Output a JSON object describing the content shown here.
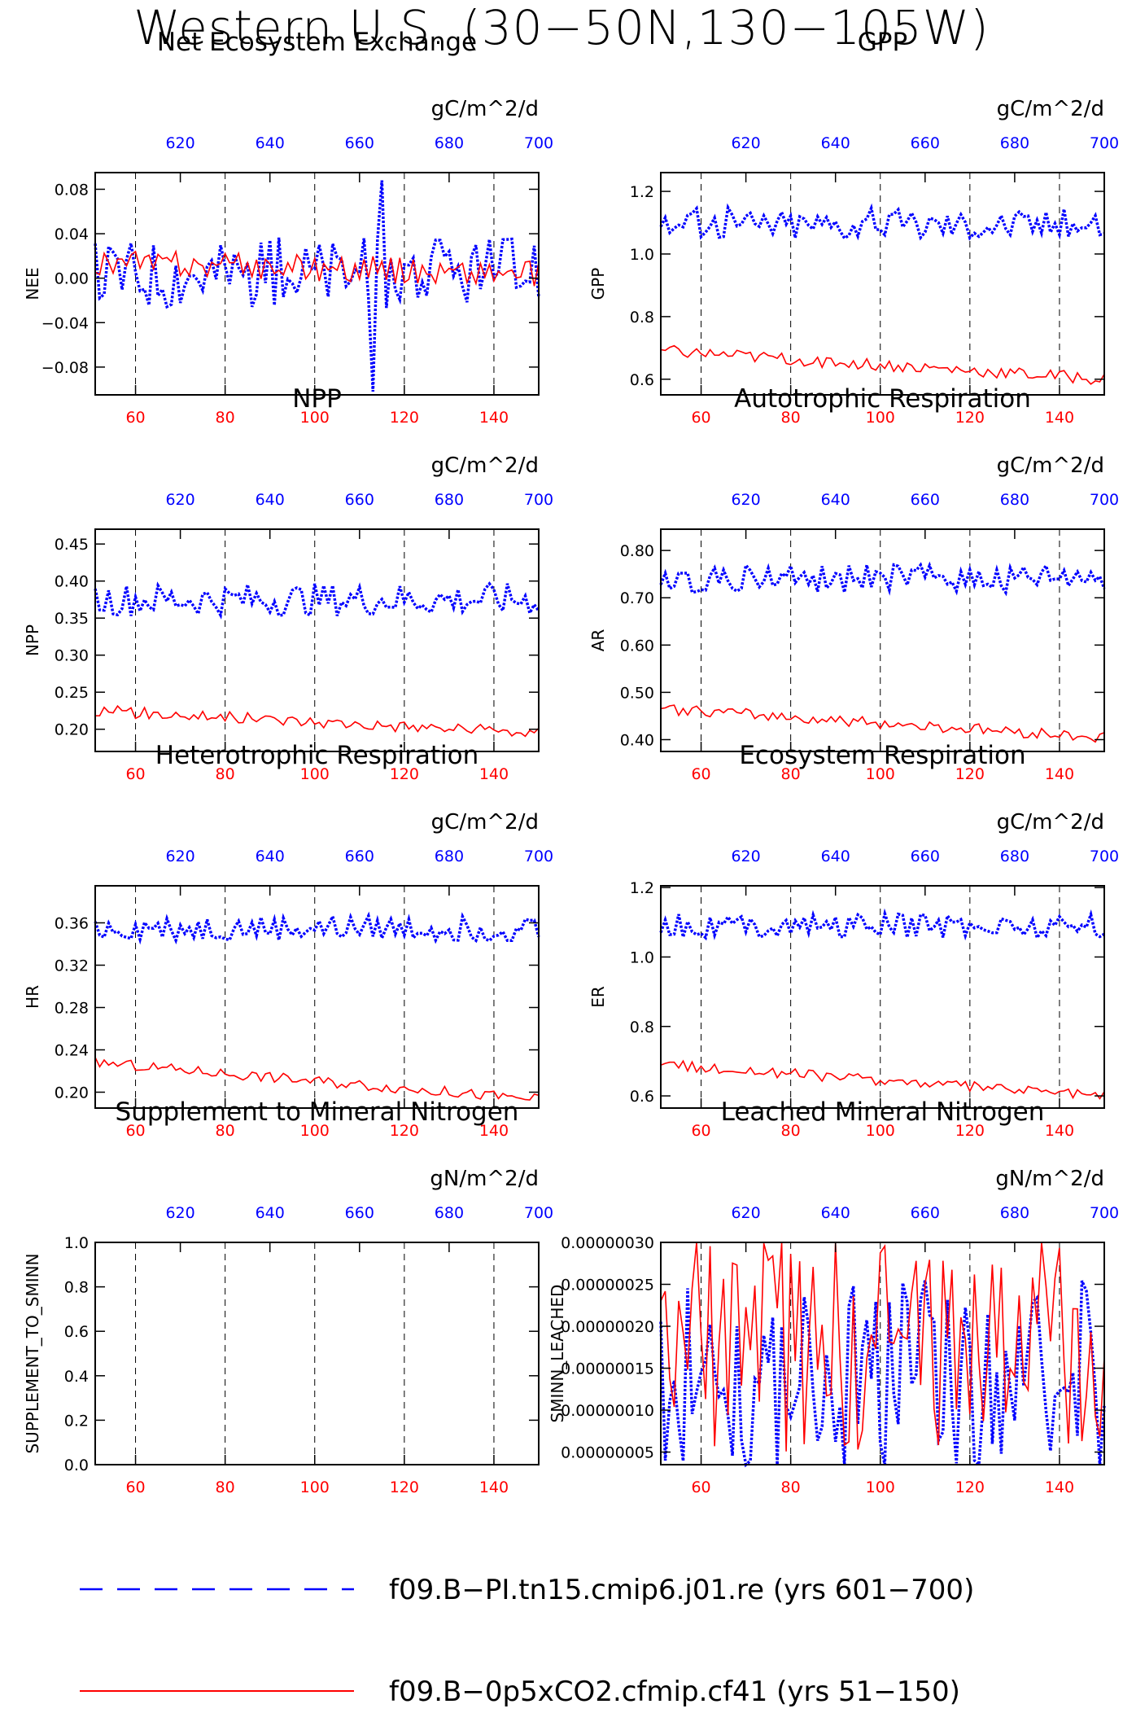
{
  "page_title": "Western U.S. (30−50N,130−105W)",
  "colors": {
    "series_blue": "#0000ff",
    "series_red": "#ff0000",
    "grid": "#000000"
  },
  "legend": [
    {
      "label": "f09.B−PI.tn15.cmip6.j01.re (yrs 601−700)",
      "color": "#0000ff",
      "style": "dashed"
    },
    {
      "label": "f09.B−0p5xCO2.cfmip.cf41 (yrs 51−150)",
      "color": "#ff0000",
      "style": "solid"
    }
  ],
  "chart_data": [
    {
      "type": "line",
      "title": "Net Ecosystem Exchange",
      "ylabel": "NEE",
      "units": "gC/m^2/d",
      "ylim": [
        -0.105,
        0.095
      ],
      "yticks": [
        -0.08,
        -0.04,
        0.0,
        0.04,
        0.08
      ],
      "ytick_labels": [
        "−0.08",
        "−0.04",
        "0.00",
        "0.04",
        "0.08"
      ],
      "x_bottom": {
        "ticks": [
          60,
          80,
          100,
          120,
          140
        ],
        "lim": [
          51,
          150
        ]
      },
      "x_top": {
        "ticks": [
          620,
          640,
          660,
          680,
          700
        ],
        "lim": [
          601,
          700
        ]
      },
      "grid": "vertical-dashed",
      "series": [
        {
          "color": "#0000ff",
          "style": "dotted",
          "base": 0.005,
          "amp": 0.032,
          "peak": [
            0.088,
            -0.102
          ]
        },
        {
          "color": "#ff0000",
          "style": "solid",
          "base": 0.014,
          "amp": 0.012,
          "trend": -0.01
        }
      ]
    },
    {
      "type": "line",
      "title": "GPP",
      "ylabel": "GPP",
      "units": "gC/m^2/d",
      "ylim": [
        0.55,
        1.26
      ],
      "yticks": [
        0.6,
        0.8,
        1.0,
        1.2
      ],
      "ytick_labels": [
        "0.6",
        "0.8",
        "1.0",
        "1.2"
      ],
      "x_bottom": {
        "ticks": [
          60,
          80,
          100,
          120,
          140
        ],
        "lim": [
          51,
          150
        ]
      },
      "x_top": {
        "ticks": [
          620,
          640,
          660,
          680,
          700
        ],
        "lim": [
          601,
          700
        ]
      },
      "grid": "vertical-dashed",
      "series": [
        {
          "color": "#0000ff",
          "style": "dotted",
          "base": 1.1,
          "amp": 0.05
        },
        {
          "color": "#ff0000",
          "style": "solid",
          "base": 0.69,
          "amp": 0.02,
          "trend": -0.09
        }
      ]
    },
    {
      "type": "line",
      "title": "NPP",
      "ylabel": "NPP",
      "units": "gC/m^2/d",
      "ylim": [
        0.17,
        0.47
      ],
      "yticks": [
        0.2,
        0.25,
        0.3,
        0.35,
        0.4,
        0.45
      ],
      "ytick_labels": [
        "0.20",
        "0.25",
        "0.30",
        "0.35",
        "0.40",
        "0.45"
      ],
      "x_bottom": {
        "ticks": [
          60,
          80,
          100,
          120,
          140
        ],
        "lim": [
          51,
          150
        ]
      },
      "x_top": {
        "ticks": [
          620,
          640,
          660,
          680,
          700
        ],
        "lim": [
          601,
          700
        ]
      },
      "grid": "vertical-dashed",
      "series": [
        {
          "color": "#0000ff",
          "style": "dotted",
          "base": 0.375,
          "amp": 0.022
        },
        {
          "color": "#ff0000",
          "style": "solid",
          "base": 0.225,
          "amp": 0.008,
          "trend": -0.03
        }
      ]
    },
    {
      "type": "line",
      "title": "Autotrophic Respiration",
      "ylabel": "AR",
      "units": "gC/m^2/d",
      "ylim": [
        0.375,
        0.845
      ],
      "yticks": [
        0.4,
        0.5,
        0.6,
        0.7,
        0.8
      ],
      "ytick_labels": [
        "0.40",
        "0.50",
        "0.60",
        "0.70",
        "0.80"
      ],
      "x_bottom": {
        "ticks": [
          60,
          80,
          100,
          120,
          140
        ],
        "lim": [
          51,
          150
        ]
      },
      "x_top": {
        "ticks": [
          620,
          640,
          660,
          680,
          700
        ],
        "lim": [
          601,
          700
        ]
      },
      "grid": "vertical-dashed",
      "series": [
        {
          "color": "#0000ff",
          "style": "dotted",
          "base": 0.74,
          "amp": 0.03
        },
        {
          "color": "#ff0000",
          "style": "solid",
          "base": 0.465,
          "amp": 0.012,
          "trend": -0.06
        }
      ]
    },
    {
      "type": "line",
      "title": "Heterotrophic Respiration",
      "ylabel": "HR",
      "units": "gC/m^2/d",
      "ylim": [
        0.185,
        0.395
      ],
      "yticks": [
        0.2,
        0.24,
        0.28,
        0.32,
        0.36
      ],
      "ytick_labels": [
        "0.20",
        "0.24",
        "0.28",
        "0.32",
        "0.36"
      ],
      "x_bottom": {
        "ticks": [
          60,
          80,
          100,
          120,
          140
        ],
        "lim": [
          51,
          150
        ]
      },
      "x_top": {
        "ticks": [
          620,
          640,
          660,
          680,
          700
        ],
        "lim": [
          601,
          700
        ]
      },
      "grid": "vertical-dashed",
      "series": [
        {
          "color": "#0000ff",
          "style": "dotted",
          "base": 0.355,
          "amp": 0.012
        },
        {
          "color": "#ff0000",
          "style": "solid",
          "base": 0.228,
          "amp": 0.005,
          "trend": -0.035
        }
      ]
    },
    {
      "type": "line",
      "title": "Ecosystem Respiration",
      "ylabel": "ER",
      "units": "gC/m^2/d",
      "ylim": [
        0.565,
        1.205
      ],
      "yticks": [
        0.6,
        0.8,
        1.0,
        1.2
      ],
      "ytick_labels": [
        "0.6",
        "0.8",
        "1.0",
        "1.2"
      ],
      "x_bottom": {
        "ticks": [
          60,
          80,
          100,
          120,
          140
        ],
        "lim": [
          51,
          150
        ]
      },
      "x_top": {
        "ticks": [
          620,
          640,
          660,
          680,
          700
        ],
        "lim": [
          601,
          700
        ]
      },
      "grid": "vertical-dashed",
      "series": [
        {
          "color": "#0000ff",
          "style": "dotted",
          "base": 1.09,
          "amp": 0.035
        },
        {
          "color": "#ff0000",
          "style": "solid",
          "base": 0.69,
          "amp": 0.015,
          "trend": -0.09
        }
      ]
    },
    {
      "type": "line",
      "title": "Supplement to Mineral Nitrogen",
      "ylabel": "SUPPLEMENT_TO_SMINN",
      "units": "gN/m^2/d",
      "ylim": [
        0.0,
        1.0
      ],
      "yticks": [
        0.0,
        0.2,
        0.4,
        0.6,
        0.8,
        1.0
      ],
      "ytick_labels": [
        "0.0",
        "0.2",
        "0.4",
        "0.6",
        "0.8",
        "1.0"
      ],
      "x_bottom": {
        "ticks": [
          60,
          80,
          100,
          120,
          140
        ],
        "lim": [
          51,
          150
        ]
      },
      "x_top": {
        "ticks": [
          620,
          640,
          660,
          680,
          700
        ],
        "lim": [
          601,
          700
        ]
      },
      "grid": "vertical-dashed",
      "series": []
    },
    {
      "type": "line",
      "title": "Leached Mineral Nitrogen",
      "ylabel": "SMINN_LEACHED",
      "units": "gN/m^2/d",
      "ylim": [
        3.5e-08,
        3e-07
      ],
      "yticks": [
        5e-08,
        1e-07,
        1.5e-07,
        2e-07,
        2.5e-07,
        3e-07
      ],
      "ytick_labels": [
        "0.00000005",
        "0.00000010",
        "0.00000015",
        "0.00000020",
        "0.00000025",
        "0.00000030"
      ],
      "x_bottom": {
        "ticks": [
          60,
          80,
          100,
          120,
          140
        ],
        "lim": [
          51,
          150
        ]
      },
      "x_top": {
        "ticks": [
          620,
          640,
          660,
          680,
          700
        ],
        "lim": [
          601,
          700
        ]
      },
      "grid": "vertical-dashed",
      "series": [
        {
          "color": "#0000ff",
          "style": "dotted",
          "base": 1.4e-07,
          "amp": 4.5e-07,
          "scale": 0.1
        },
        {
          "color": "#ff0000",
          "style": "solid",
          "base": 1.8e-07,
          "amp": 5e-07,
          "scale": 0.1
        }
      ]
    }
  ]
}
